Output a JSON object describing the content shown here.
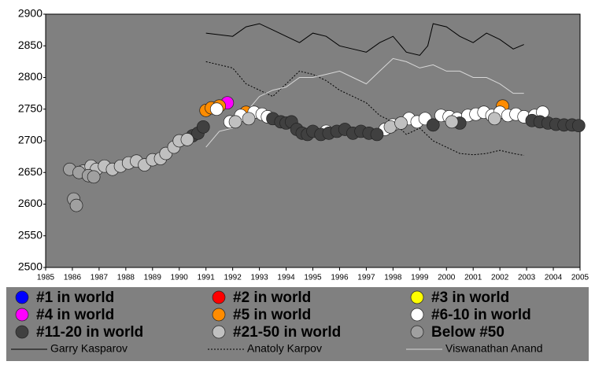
{
  "chart_data": {
    "type": "scatter",
    "xlim": [
      1985,
      2005
    ],
    "xticks": [
      1985,
      1986,
      1987,
      1988,
      1989,
      1990,
      1991,
      1992,
      1993,
      1994,
      1995,
      1996,
      1997,
      1998,
      1999,
      2000,
      2001,
      2002,
      2003,
      2004,
      2005
    ],
    "ylim": [
      2500,
      2900
    ],
    "yticks": [
      2500,
      2550,
      2600,
      2650,
      2700,
      2750,
      2800,
      2850,
      2900
    ],
    "grid": false,
    "background": "#808080",
    "series": [
      {
        "name": "#1 in world",
        "color": "#0000ff",
        "x": [],
        "values": []
      },
      {
        "name": "#2 in world",
        "color": "#ff0000",
        "x": [],
        "values": []
      },
      {
        "name": "#3 in world",
        "color": "#ffff00",
        "x": [],
        "values": []
      },
      {
        "name": "#4 in world",
        "color": "#ff00ff",
        "x": [
          1991.8
        ],
        "values": [
          2760
        ]
      },
      {
        "name": "#5 in world",
        "color": "#ff8c00",
        "x": [
          1991.0,
          1991.2,
          1991.5,
          1992.5,
          2002.1
        ],
        "values": [
          2748,
          2752,
          2755,
          2745,
          2755
        ]
      },
      {
        "name": "#6-10 in world",
        "color": "#ffffff",
        "x": [
          1991.4,
          1991.9,
          1992.3,
          1992.8,
          1993.1,
          1993.3,
          1995.5,
          1997.7,
          1998.0,
          1998.6,
          1998.9,
          1999.2,
          1999.8,
          2000.1,
          2000.4,
          2000.8,
          2001.1,
          2001.4,
          2001.7,
          2002.0,
          2002.3,
          2002.6,
          2002.9,
          2003.3,
          2003.6
        ],
        "values": [
          2750,
          2730,
          2740,
          2745,
          2742,
          2738,
          2715,
          2718,
          2725,
          2735,
          2730,
          2735,
          2740,
          2738,
          2735,
          2740,
          2742,
          2745,
          2740,
          2745,
          2740,
          2742,
          2738,
          2740,
          2745
        ]
      },
      {
        "name": "#11-20 in world",
        "color": "#404040",
        "x": [
          1990.5,
          1990.7,
          1990.9,
          1993.5,
          1993.8,
          1994.0,
          1994.2,
          1994.4,
          1994.6,
          1994.8,
          1995.0,
          1995.3,
          1995.6,
          1995.9,
          1996.2,
          1996.5,
          1996.8,
          1997.1,
          1997.4,
          1999.5,
          2000.5,
          2003.2,
          2003.5,
          2003.8,
          2004.1,
          2004.4,
          2004.7,
          2004.95
        ],
        "values": [
          2708,
          2712,
          2722,
          2735,
          2730,
          2728,
          2730,
          2718,
          2712,
          2710,
          2715,
          2710,
          2712,
          2715,
          2718,
          2712,
          2715,
          2712,
          2710,
          2725,
          2728,
          2732,
          2730,
          2728,
          2726,
          2725,
          2725,
          2724
        ]
      },
      {
        "name": "#21-50 in world",
        "color": "#c0c0c0",
        "x": [
          1986.4,
          1986.7,
          1986.9,
          1987.2,
          1987.5,
          1987.8,
          1988.1,
          1988.4,
          1988.7,
          1989.0,
          1989.3,
          1989.5,
          1989.8,
          1990.0,
          1990.3,
          1992.1,
          1992.6,
          1997.9,
          1998.3,
          2000.2,
          2001.8
        ],
        "values": [
          2652,
          2660,
          2655,
          2660,
          2655,
          2660,
          2665,
          2668,
          2662,
          2670,
          2672,
          2680,
          2690,
          2700,
          2702,
          2730,
          2735,
          2722,
          2728,
          2730,
          2735
        ]
      },
      {
        "name": "Below #50",
        "color": "#a0a0a0",
        "x": [
          1985.9,
          1986.05,
          1986.15,
          1986.25,
          1986.6,
          1986.8
        ],
        "values": [
          2655,
          2608,
          2598,
          2650,
          2645,
          2643
        ]
      }
    ],
    "lines": [
      {
        "name": "Garry Kasparov",
        "color": "#000000",
        "dash": "none",
        "x": [
          1991,
          1992,
          1992.5,
          1993,
          1993.5,
          1994,
          1994.5,
          1995,
          1995.5,
          1996,
          1996.5,
          1997,
          1997.5,
          1998,
          1998.5,
          1999,
          1999.3,
          1999.5,
          2000,
          2000.5,
          2001,
          2001.5,
          2002,
          2002.5,
          2002.9
        ],
        "values": [
          2870,
          2865,
          2880,
          2885,
          2875,
          2865,
          2855,
          2870,
          2865,
          2850,
          2845,
          2840,
          2855,
          2865,
          2840,
          2835,
          2850,
          2885,
          2880,
          2865,
          2855,
          2870,
          2860,
          2845,
          2852
        ]
      },
      {
        "name": "Anatoly Karpov",
        "color": "#000000",
        "dash": "2,2",
        "x": [
          1991,
          1991.5,
          1992,
          1992.5,
          1993,
          1993.5,
          1994,
          1994.5,
          1995,
          1995.5,
          1996,
          1996.5,
          1997,
          1997.5,
          1998,
          1998.5,
          1999,
          1999.5,
          2000,
          2000.5,
          2001,
          2001.5,
          2002,
          2002.5,
          2002.9
        ],
        "values": [
          2825,
          2820,
          2815,
          2790,
          2780,
          2770,
          2790,
          2810,
          2805,
          2795,
          2780,
          2770,
          2760,
          2740,
          2730,
          2710,
          2720,
          2700,
          2690,
          2680,
          2678,
          2680,
          2685,
          2680,
          2677
        ]
      },
      {
        "name": "Viswanathan Anand",
        "color": "#d8d8d8",
        "dash": "none",
        "x": [
          1991,
          1991.5,
          1992,
          1992.5,
          1993,
          1993.5,
          1994,
          1994.5,
          1995,
          1995.5,
          1996,
          1996.5,
          1997,
          1997.5,
          1998,
          1998.5,
          1999,
          1999.5,
          2000,
          2000.5,
          2001,
          2001.5,
          2002,
          2002.5,
          2002.9
        ],
        "values": [
          2690,
          2715,
          2720,
          2745,
          2770,
          2780,
          2785,
          2800,
          2800,
          2805,
          2810,
          2800,
          2790,
          2810,
          2830,
          2825,
          2815,
          2820,
          2810,
          2810,
          2800,
          2800,
          2790,
          2775,
          2775
        ]
      }
    ]
  }
}
